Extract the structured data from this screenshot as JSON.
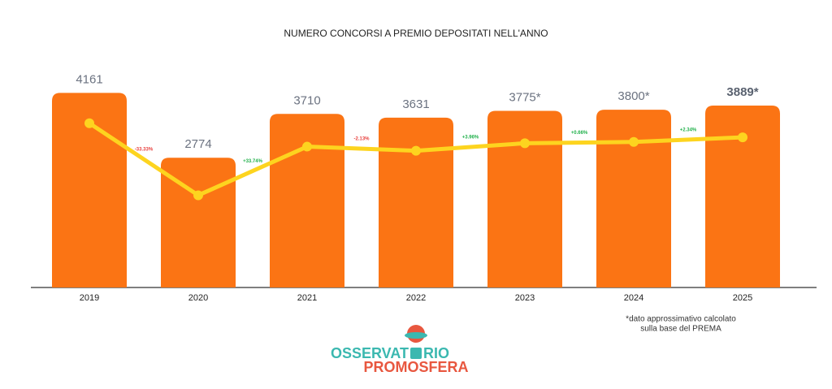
{
  "chart_data": {
    "type": "bar",
    "title": "NUMERO CONCORSI A PREMIO DEPOSITATI NELL'ANNO",
    "categories": [
      "2019",
      "2020",
      "2021",
      "2022",
      "2023",
      "2024",
      "2025"
    ],
    "series": [
      {
        "type": "bar",
        "color": "#fb7414",
        "values": [
          4161,
          2774,
          3710,
          3631,
          3775,
          3800,
          3889
        ],
        "value_labels": [
          "4161",
          "2774",
          "3710",
          "3631",
          "3775*",
          "3800*",
          "3889*"
        ]
      },
      {
        "type": "line",
        "axis": "y2",
        "color": "#fdd41f",
        "values": [
          4161,
          2774,
          3710,
          3631,
          3775,
          3800,
          3889
        ]
      }
    ],
    "ylim": [
      0,
      5000
    ],
    "y2lim": [
      1000,
      5500
    ],
    "changes": [
      {
        "label": "-33.33%",
        "color": "#e8423f"
      },
      {
        "label": "+33.74%",
        "color": "#22b14c"
      },
      {
        "label": "-2.13%",
        "color": "#e8423f"
      },
      {
        "label": "+3.96%",
        "color": "#22b14c"
      },
      {
        "label": "+0.66%",
        "color": "#22b14c"
      },
      {
        "label": "+2.34%",
        "color": "#22b14c"
      }
    ],
    "note": [
      "*dato approssimativo calcolato",
      "sulla base del PREMA"
    ]
  },
  "logo": {
    "top": [
      "OSSERVAT",
      "RIO"
    ],
    "bottom": "PROMOSFERA"
  }
}
